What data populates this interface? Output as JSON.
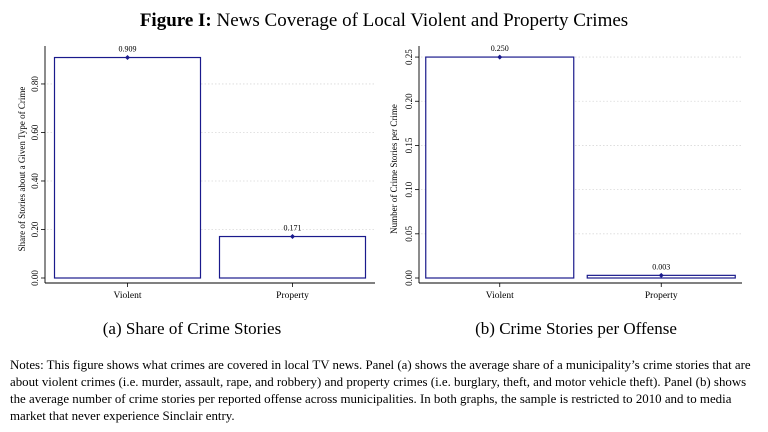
{
  "figure": {
    "label": "Figure I:",
    "title": "News Coverage of Local Violent and Property Crimes"
  },
  "panels": {
    "a_caption": "(a) Share of Crime Stories",
    "b_caption": "(b) Crime Stories per Offense"
  },
  "notes": "Notes: This figure shows what crimes are covered in local TV news. Panel (a) shows the average share of a municipality’s crime stories that are about violent crimes (i.e. murder, assault, rape, and robbery) and property crimes (i.e. burglary, theft, and motor vehicle theft). Panel (b) shows the average number of crime stories per reported offense across municipalities. In both graphs, the sample is restricted to 2010 and to media market that never experience Sinclair entry.",
  "colors": {
    "bar_edge": "#1a1a8c",
    "marker": "#1a1a8c",
    "grid": "#d9d9d9",
    "axis": "#000000"
  },
  "chart_data": [
    {
      "type": "bar",
      "categories": [
        "Violent",
        "Property"
      ],
      "values": [
        0.909,
        0.171
      ],
      "value_labels": [
        "0.909",
        "0.171"
      ],
      "title": "",
      "xlabel": "",
      "ylabel": "Share of Stories about a Given Type of Crime",
      "ylim": [
        0,
        0.94
      ],
      "yticks": [
        0,
        0.2,
        0.4,
        0.6,
        0.8
      ],
      "ytick_labels": [
        "0.00",
        "0.20",
        "0.40",
        "0.60",
        "0.80"
      ],
      "grid": true,
      "legend": "none"
    },
    {
      "type": "bar",
      "categories": [
        "Violent",
        "Property"
      ],
      "values": [
        0.25,
        0.003
      ],
      "value_labels": [
        "0.250",
        "0.003"
      ],
      "title": "",
      "xlabel": "",
      "ylabel": "Number of Crime Stories per Crime",
      "ylim": [
        0,
        0.258
      ],
      "yticks": [
        0,
        0.05,
        0.1,
        0.15,
        0.2,
        0.25
      ],
      "ytick_labels": [
        "0.00",
        "0.05",
        "0.10",
        "0.15",
        "0.20",
        "0.25"
      ],
      "grid": true,
      "legend": "none"
    }
  ]
}
